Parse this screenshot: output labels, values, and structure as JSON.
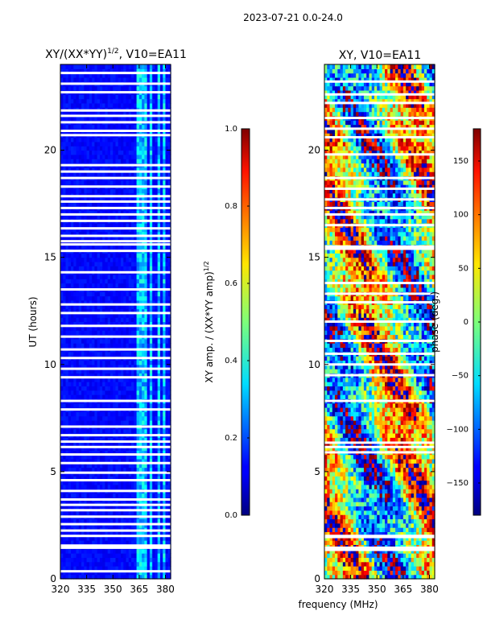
{
  "figure": {
    "suptitle": "2023-07-21 0.0-24.0",
    "shared_xlabel": "frequency (MHz)"
  },
  "chart_data": [
    {
      "type": "heatmap",
      "title_main": "XY/(XX*YY)",
      "title_exp": "1/2",
      "title_tail": ", V10=EA11",
      "ylabel": "UT (hours)",
      "xlim": [
        320,
        383
      ],
      "ylim": [
        0,
        24
      ],
      "xticks": [
        "320",
        "335",
        "350",
        "365",
        "380"
      ],
      "xtick_values": [
        320,
        335,
        350,
        365,
        380
      ],
      "yticks": [
        "0",
        "5",
        "10",
        "15",
        "20"
      ],
      "ytick_values": [
        0,
        5,
        10,
        15,
        20
      ],
      "colorbar": {
        "label_main": "XY amp. / (XX*YY amp)",
        "label_exp": "1/2",
        "range": [
          0.0,
          1.0
        ],
        "ticks": [
          "0.0",
          "0.2",
          "0.4",
          "0.6",
          "0.8",
          "1.0"
        ],
        "tick_values": [
          0.0,
          0.2,
          0.4,
          0.6,
          0.8,
          1.0
        ],
        "colormap": "jet"
      },
      "blank_times_hours": [
        0.35,
        1.45,
        1.55,
        2.0,
        2.25,
        2.55,
        2.9,
        3.2,
        3.45,
        3.7,
        4.1,
        4.6,
        4.95,
        5.4,
        5.8,
        6.15,
        6.4,
        6.7,
        7.1,
        7.9,
        8.3,
        9.4,
        9.8,
        10.3,
        10.7,
        11.3,
        11.8,
        12.4,
        12.8,
        13.5,
        14.3,
        15.3,
        15.6,
        15.75,
        16.0,
        16.35,
        16.7,
        17.0,
        17.3,
        17.6,
        17.85,
        18.3,
        18.7,
        19.0,
        19.3,
        20.7,
        20.9,
        21.3,
        21.6,
        21.85,
        22.7,
        23.1,
        23.6
      ],
      "bright_bands_mhz": [
        [
          363,
          366
        ],
        [
          367,
          369
        ],
        [
          371,
          373
        ],
        [
          375,
          377
        ],
        [
          378,
          380
        ]
      ]
    },
    {
      "type": "heatmap",
      "title": "XY, V10=EA11",
      "xlim": [
        320,
        383
      ],
      "ylim": [
        0,
        24
      ],
      "xticks": [
        "320",
        "335",
        "350",
        "365",
        "380"
      ],
      "xtick_values": [
        320,
        335,
        350,
        365,
        380
      ],
      "yticks": [
        "0",
        "5",
        "10",
        "15",
        "20"
      ],
      "ytick_values": [
        0,
        5,
        10,
        15,
        20
      ],
      "colorbar": {
        "label": "phase (deg.)",
        "range": [
          -180,
          180
        ],
        "ticks": [
          "−150",
          "−100",
          "−50",
          "0",
          "50",
          "100",
          "150"
        ],
        "tick_values": [
          -150,
          -100,
          -50,
          0,
          50,
          100,
          150
        ],
        "colormap": "jet"
      },
      "blank_times_hours": [
        1.35,
        1.45,
        1.95,
        2.0,
        5.9,
        6.15,
        6.35,
        8.3,
        9.5,
        10.0,
        10.5,
        11.1,
        12.0,
        12.9,
        13.3,
        13.8,
        15.4,
        15.5,
        16.5,
        17.0,
        17.3,
        17.7,
        18.2,
        18.7,
        19.8,
        20.6,
        21.0,
        21.5,
        22.2,
        22.6,
        23.2
      ]
    }
  ]
}
